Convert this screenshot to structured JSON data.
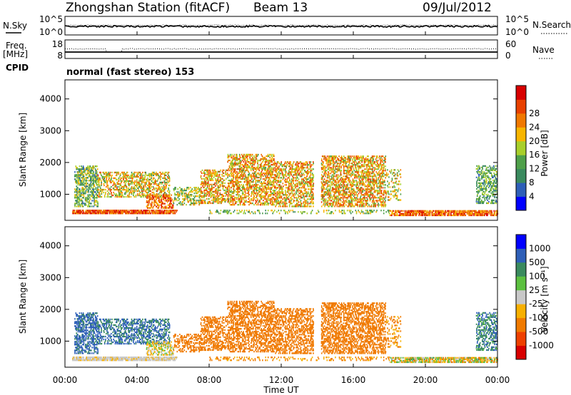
{
  "header": {
    "station": "Zhongshan Station (fitACF)",
    "beam": "Beam 13",
    "date": "09/Jul/2012"
  },
  "side_labels": {
    "nsky": "N.Sky",
    "freq_line1": "Freq.",
    "freq_line2": "[MHz]",
    "cpid": "CPID",
    "nsearch": "N.Search",
    "nave": "Nave"
  },
  "mode_label": "normal (fast stereo) 153",
  "colors": {
    "power_scale": [
      "#0000ff",
      "#2e5fb8",
      "#3a8a5e",
      "#4fa04a",
      "#a8cf2a",
      "#f7b500",
      "#f07800",
      "#e84000",
      "#d80000"
    ],
    "velocity_scale": [
      "#d80000",
      "#ee4000",
      "#f07a00",
      "#f7b000",
      "#c8c8c8",
      "#5cc040",
      "#3a8a5e",
      "#2e5fb8",
      "#0000ff"
    ]
  },
  "chart_data": [
    {
      "type": "line",
      "panel": "noise",
      "left_ticks": [
        "10^5",
        "10^0"
      ],
      "right_ticks": [
        "10^5",
        "10^0"
      ]
    },
    {
      "type": "line",
      "panel": "freq-nave",
      "left_ticks": [
        "18",
        "8"
      ],
      "right_ticks": [
        "60",
        "0"
      ]
    },
    {
      "type": "heatmap",
      "panel": "power",
      "ylabel": "Slant Range [km]",
      "ylim": [
        180,
        4600
      ],
      "yticks": [
        "1000",
        "2000",
        "3000",
        "4000"
      ],
      "colorbar_label": "Power [dB]",
      "colorbar_ticks": [
        "4",
        "8",
        "12",
        "16",
        "20",
        "24",
        "28"
      ]
    },
    {
      "type": "heatmap",
      "panel": "velocity",
      "ylabel": "Slant Range [km]",
      "ylim": [
        180,
        4600
      ],
      "yticks": [
        "1000",
        "2000",
        "3000",
        "4000"
      ],
      "colorbar_label": "Velocity [m s⁻¹]",
      "colorbar_ticks": [
        "1000",
        "500",
        "100",
        "25",
        "-25",
        "-100",
        "-500",
        "-1000"
      ]
    }
  ],
  "x_axis": {
    "label": "Time UT",
    "ticks": [
      "00:00",
      "04:00",
      "08:00",
      "12:00",
      "16:00",
      "20:00",
      "00:00"
    ],
    "xlim_hours": [
      0,
      24
    ]
  }
}
